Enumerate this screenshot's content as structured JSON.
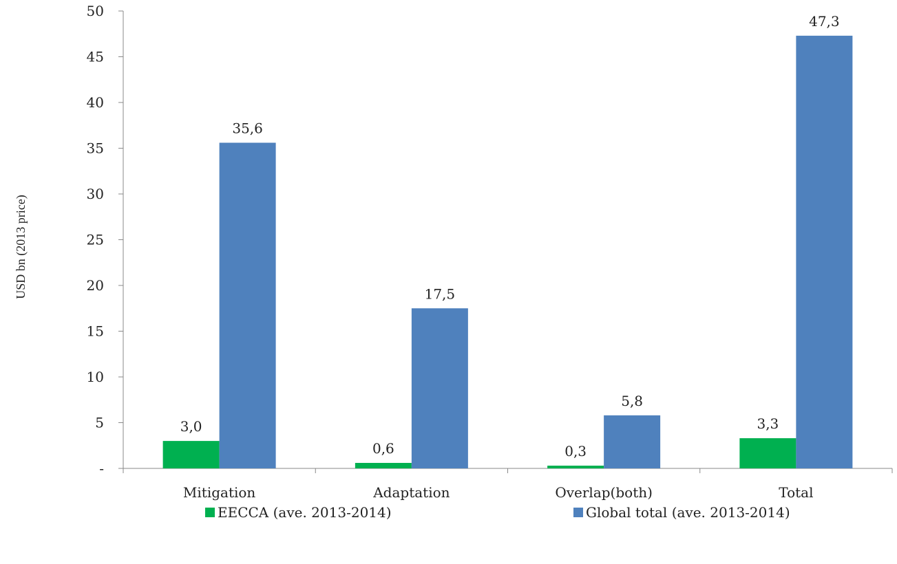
{
  "chart_data": {
    "type": "bar",
    "categories": [
      "Mitigation",
      "Adaptation",
      "Overlap(both)",
      "Total"
    ],
    "series": [
      {
        "name": "EECCA (ave. 2013-2014)",
        "color": "#00b050",
        "values": [
          3.0,
          0.6,
          0.3,
          3.3
        ],
        "labels": [
          "3,0",
          "0,6",
          "0,3",
          "3,3"
        ]
      },
      {
        "name": "Global total (ave. 2013-2014)",
        "color": "#4f81bd",
        "values": [
          35.6,
          17.5,
          5.8,
          47.3
        ],
        "labels": [
          "35,6",
          "17,5",
          "5,8",
          "47,3"
        ]
      }
    ],
    "ylabel": "USD bn (2013 price)",
    "xlabel": "",
    "ylim": [
      0,
      50
    ],
    "yticks": [
      0,
      5,
      10,
      15,
      20,
      25,
      30,
      35,
      40,
      45,
      50
    ],
    "ytick_labels": [
      "-",
      "5",
      "10",
      "15",
      "20",
      "25",
      "30",
      "35",
      "40",
      "45",
      "50"
    ],
    "grid": false,
    "legend_position": "bottom"
  }
}
